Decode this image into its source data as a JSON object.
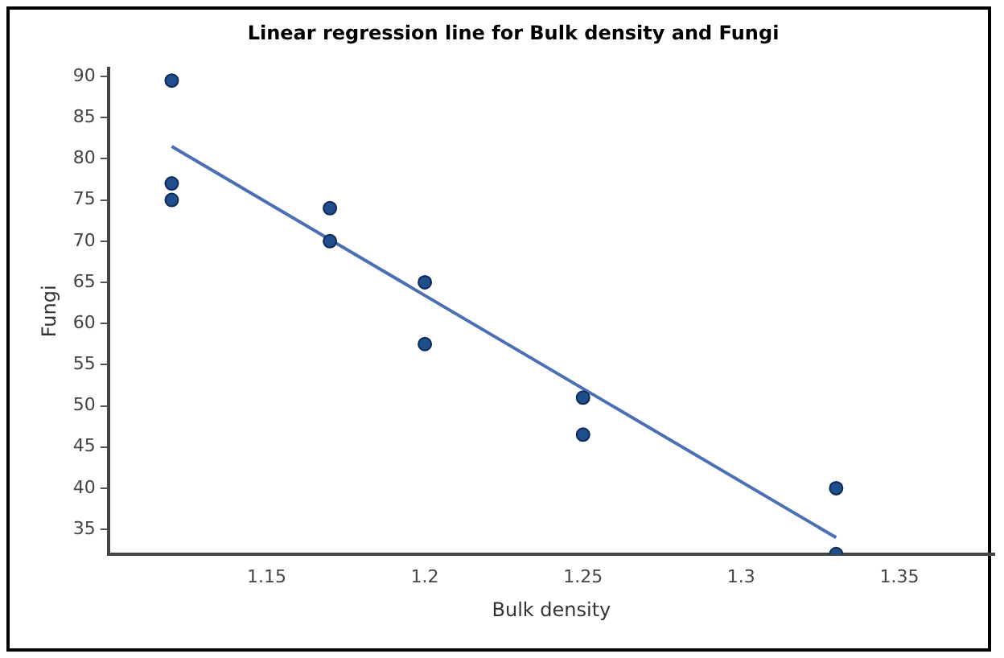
{
  "chart_data": {
    "type": "scatter",
    "title": "Linear regression line for Bulk density and Fungi",
    "xlabel": "Bulk density",
    "ylabel": "Fungi",
    "xlim": [
      1.1,
      1.38
    ],
    "xticks": [
      1.15,
      1.2,
      1.25,
      1.3,
      1.35
    ],
    "ylim": [
      32,
      91
    ],
    "yticks": [
      35,
      40,
      45,
      50,
      55,
      60,
      65,
      70,
      75,
      80,
      85,
      90
    ],
    "grid": false,
    "legend": false,
    "series": [
      {
        "type": "scatter",
        "marker": "circle",
        "color": "#1f4e8c",
        "x": [
          1.12,
          1.12,
          1.12,
          1.17,
          1.17,
          1.2,
          1.2,
          1.25,
          1.25,
          1.33,
          1.33
        ],
        "values": [
          89.5,
          77,
          75,
          74,
          70,
          65,
          57.5,
          51,
          46.5,
          40,
          32
        ]
      },
      {
        "type": "line",
        "marker": "none",
        "color": "#4a6fb5",
        "x": [
          1.12,
          1.33
        ],
        "values": [
          81.5,
          34
        ]
      }
    ]
  }
}
